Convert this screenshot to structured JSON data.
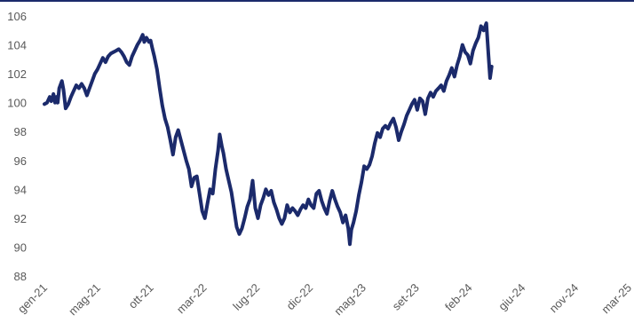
{
  "chart_data": {
    "type": "line",
    "title": "",
    "xlabel": "",
    "ylabel": "",
    "ylim": [
      88,
      106
    ],
    "yticks": [
      88,
      90,
      92,
      94,
      96,
      98,
      100,
      102,
      104,
      106
    ],
    "ytick_labels": [
      "88",
      "90",
      "92",
      "94",
      "96",
      "98",
      "100",
      "102",
      "104",
      "106"
    ],
    "categories": [
      "gen-21",
      "mag-21",
      "ott-21",
      "mar-22",
      "lug-22",
      "dic-22",
      "mag-23",
      "set-23",
      "feb-24",
      "giu-24",
      "nov-24",
      "mar-25"
    ],
    "grid": false,
    "legend": "none",
    "colors": {
      "line": "#1b2a6b",
      "tick_text": "#595959",
      "frame": "#1b2a6b"
    },
    "series": [
      {
        "values": [
          [
            0,
            99.9
          ],
          [
            0.05,
            100.0
          ],
          [
            0.1,
            100.4
          ],
          [
            0.13,
            100.1
          ],
          [
            0.17,
            100.6
          ],
          [
            0.2,
            100.0
          ],
          [
            0.23,
            100.4
          ],
          [
            0.25,
            100.0
          ],
          [
            0.28,
            101.0
          ],
          [
            0.33,
            101.5
          ],
          [
            0.36,
            100.9
          ],
          [
            0.4,
            99.6
          ],
          [
            0.45,
            99.9
          ],
          [
            0.5,
            100.4
          ],
          [
            0.55,
            100.8
          ],
          [
            0.6,
            101.2
          ],
          [
            0.65,
            101.0
          ],
          [
            0.7,
            101.3
          ],
          [
            0.75,
            101.0
          ],
          [
            0.8,
            100.5
          ],
          [
            0.85,
            101.0
          ],
          [
            0.9,
            101.5
          ],
          [
            0.95,
            102.0
          ],
          [
            1.0,
            102.3
          ],
          [
            1.05,
            102.7
          ],
          [
            1.1,
            103.1
          ],
          [
            1.15,
            102.8
          ],
          [
            1.2,
            103.2
          ],
          [
            1.25,
            103.4
          ],
          [
            1.3,
            103.5
          ],
          [
            1.35,
            103.6
          ],
          [
            1.4,
            103.7
          ],
          [
            1.45,
            103.5
          ],
          [
            1.5,
            103.2
          ],
          [
            1.55,
            102.8
          ],
          [
            1.6,
            102.6
          ],
          [
            1.65,
            103.2
          ],
          [
            1.7,
            103.6
          ],
          [
            1.75,
            104.0
          ],
          [
            1.8,
            104.3
          ],
          [
            1.85,
            104.7
          ],
          [
            1.88,
            104.2
          ],
          [
            1.92,
            104.5
          ],
          [
            1.97,
            104.2
          ],
          [
            2.0,
            104.3
          ],
          [
            2.03,
            103.8
          ],
          [
            2.07,
            103.2
          ],
          [
            2.12,
            102.3
          ],
          [
            2.17,
            101.0
          ],
          [
            2.22,
            99.8
          ],
          [
            2.27,
            98.9
          ],
          [
            2.32,
            98.3
          ],
          [
            2.37,
            97.4
          ],
          [
            2.42,
            96.4
          ],
          [
            2.47,
            97.6
          ],
          [
            2.52,
            98.1
          ],
          [
            2.57,
            97.4
          ],
          [
            2.62,
            96.7
          ],
          [
            2.67,
            96.0
          ],
          [
            2.72,
            95.4
          ],
          [
            2.77,
            94.2
          ],
          [
            2.82,
            94.8
          ],
          [
            2.87,
            94.9
          ],
          [
            2.92,
            93.7
          ],
          [
            2.97,
            92.5
          ],
          [
            3.02,
            92.0
          ],
          [
            3.07,
            93.0
          ],
          [
            3.12,
            94.0
          ],
          [
            3.17,
            93.7
          ],
          [
            3.22,
            95.4
          ],
          [
            3.27,
            96.7
          ],
          [
            3.3,
            97.8
          ],
          [
            3.34,
            97.0
          ],
          [
            3.37,
            96.5
          ],
          [
            3.42,
            95.4
          ],
          [
            3.47,
            94.6
          ],
          [
            3.52,
            93.8
          ],
          [
            3.57,
            92.6
          ],
          [
            3.62,
            91.4
          ],
          [
            3.67,
            90.9
          ],
          [
            3.72,
            91.3
          ],
          [
            3.77,
            92.0
          ],
          [
            3.82,
            92.8
          ],
          [
            3.87,
            93.3
          ],
          [
            3.92,
            94.6
          ],
          [
            3.97,
            92.7
          ],
          [
            4.02,
            92.0
          ],
          [
            4.07,
            92.9
          ],
          [
            4.12,
            93.4
          ],
          [
            4.17,
            94.0
          ],
          [
            4.22,
            93.6
          ],
          [
            4.27,
            93.9
          ],
          [
            4.32,
            93.1
          ],
          [
            4.37,
            92.6
          ],
          [
            4.42,
            92.0
          ],
          [
            4.47,
            91.6
          ],
          [
            4.52,
            92.0
          ],
          [
            4.57,
            92.9
          ],
          [
            4.62,
            92.4
          ],
          [
            4.67,
            92.7
          ],
          [
            4.72,
            92.5
          ],
          [
            4.77,
            92.2
          ],
          [
            4.82,
            92.6
          ],
          [
            4.87,
            92.9
          ],
          [
            4.92,
            92.7
          ],
          [
            4.97,
            93.3
          ],
          [
            5.02,
            92.9
          ],
          [
            5.07,
            92.7
          ],
          [
            5.12,
            93.7
          ],
          [
            5.17,
            93.9
          ],
          [
            5.22,
            93.2
          ],
          [
            5.27,
            92.7
          ],
          [
            5.32,
            92.3
          ],
          [
            5.37,
            93.2
          ],
          [
            5.42,
            93.9
          ],
          [
            5.47,
            93.3
          ],
          [
            5.52,
            92.8
          ],
          [
            5.57,
            92.4
          ],
          [
            5.62,
            91.7
          ],
          [
            5.67,
            92.2
          ],
          [
            5.72,
            91.3
          ],
          [
            5.75,
            90.2
          ],
          [
            5.78,
            91.2
          ],
          [
            5.82,
            91.7
          ],
          [
            5.87,
            92.5
          ],
          [
            5.92,
            93.6
          ],
          [
            5.97,
            94.5
          ],
          [
            6.02,
            95.6
          ],
          [
            6.07,
            95.4
          ],
          [
            6.12,
            95.7
          ],
          [
            6.17,
            96.3
          ],
          [
            6.22,
            97.2
          ],
          [
            6.27,
            97.9
          ],
          [
            6.32,
            97.6
          ],
          [
            6.37,
            98.2
          ],
          [
            6.42,
            98.4
          ],
          [
            6.47,
            98.2
          ],
          [
            6.52,
            98.6
          ],
          [
            6.57,
            98.9
          ],
          [
            6.62,
            98.3
          ],
          [
            6.67,
            97.4
          ],
          [
            6.72,
            98.0
          ],
          [
            6.77,
            98.5
          ],
          [
            6.82,
            99.1
          ],
          [
            6.87,
            99.5
          ],
          [
            6.92,
            99.9
          ],
          [
            6.97,
            100.2
          ],
          [
            7.02,
            99.5
          ],
          [
            7.07,
            100.3
          ],
          [
            7.12,
            100.1
          ],
          [
            7.17,
            99.2
          ],
          [
            7.22,
            100.3
          ],
          [
            7.27,
            100.7
          ],
          [
            7.32,
            100.4
          ],
          [
            7.37,
            100.8
          ],
          [
            7.42,
            101.0
          ],
          [
            7.47,
            101.2
          ],
          [
            7.52,
            100.8
          ],
          [
            7.57,
            101.5
          ],
          [
            7.62,
            101.9
          ],
          [
            7.67,
            102.4
          ],
          [
            7.72,
            101.8
          ],
          [
            7.77,
            102.6
          ],
          [
            7.82,
            103.2
          ],
          [
            7.87,
            104.0
          ],
          [
            7.92,
            103.5
          ],
          [
            7.97,
            103.3
          ],
          [
            8.02,
            102.7
          ],
          [
            8.07,
            103.6
          ],
          [
            8.12,
            104.1
          ],
          [
            8.17,
            104.5
          ],
          [
            8.22,
            105.3
          ],
          [
            8.27,
            105.0
          ],
          [
            8.32,
            105.5
          ],
          [
            8.36,
            103.3
          ],
          [
            8.39,
            101.7
          ],
          [
            8.42,
            102.5
          ]
        ]
      }
    ]
  }
}
